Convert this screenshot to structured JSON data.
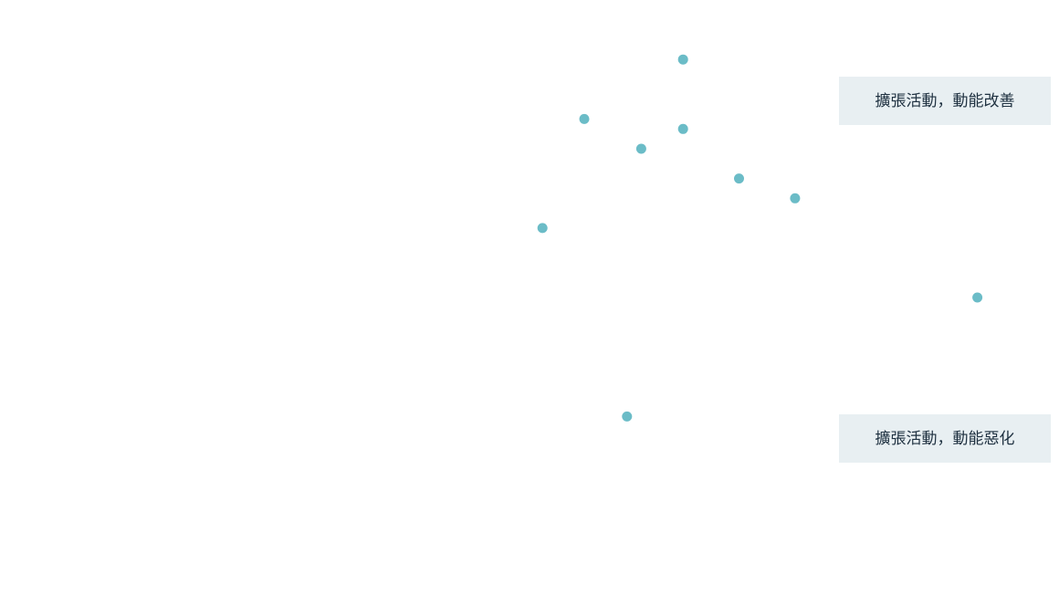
{
  "chart_data": {
    "type": "scatter",
    "title": "",
    "xlabel": "",
    "ylabel": "",
    "grid": false,
    "legend": "none",
    "point_color": "#6bbcc7",
    "x_range": [
      0,
      100
    ],
    "y_range": [
      -60,
      60
    ],
    "points": [
      {
        "x": 60.4,
        "y": 48.0
      },
      {
        "x": 50.0,
        "y": 36.0
      },
      {
        "x": 60.4,
        "y": 34.0
      },
      {
        "x": 56.0,
        "y": 30.0
      },
      {
        "x": 66.3,
        "y": 24.0
      },
      {
        "x": 72.2,
        "y": 20.0
      },
      {
        "x": 45.6,
        "y": 14.0
      },
      {
        "x": 91.4,
        "y": 0.0
      },
      {
        "x": 54.5,
        "y": -24.0
      }
    ],
    "annotations": [
      {
        "id": "top",
        "text": "擴張活動，動能改善",
        "position": "top-right"
      },
      {
        "id": "bottom",
        "text": "擴張活動，動能惡化",
        "position": "bottom-right"
      }
    ]
  }
}
